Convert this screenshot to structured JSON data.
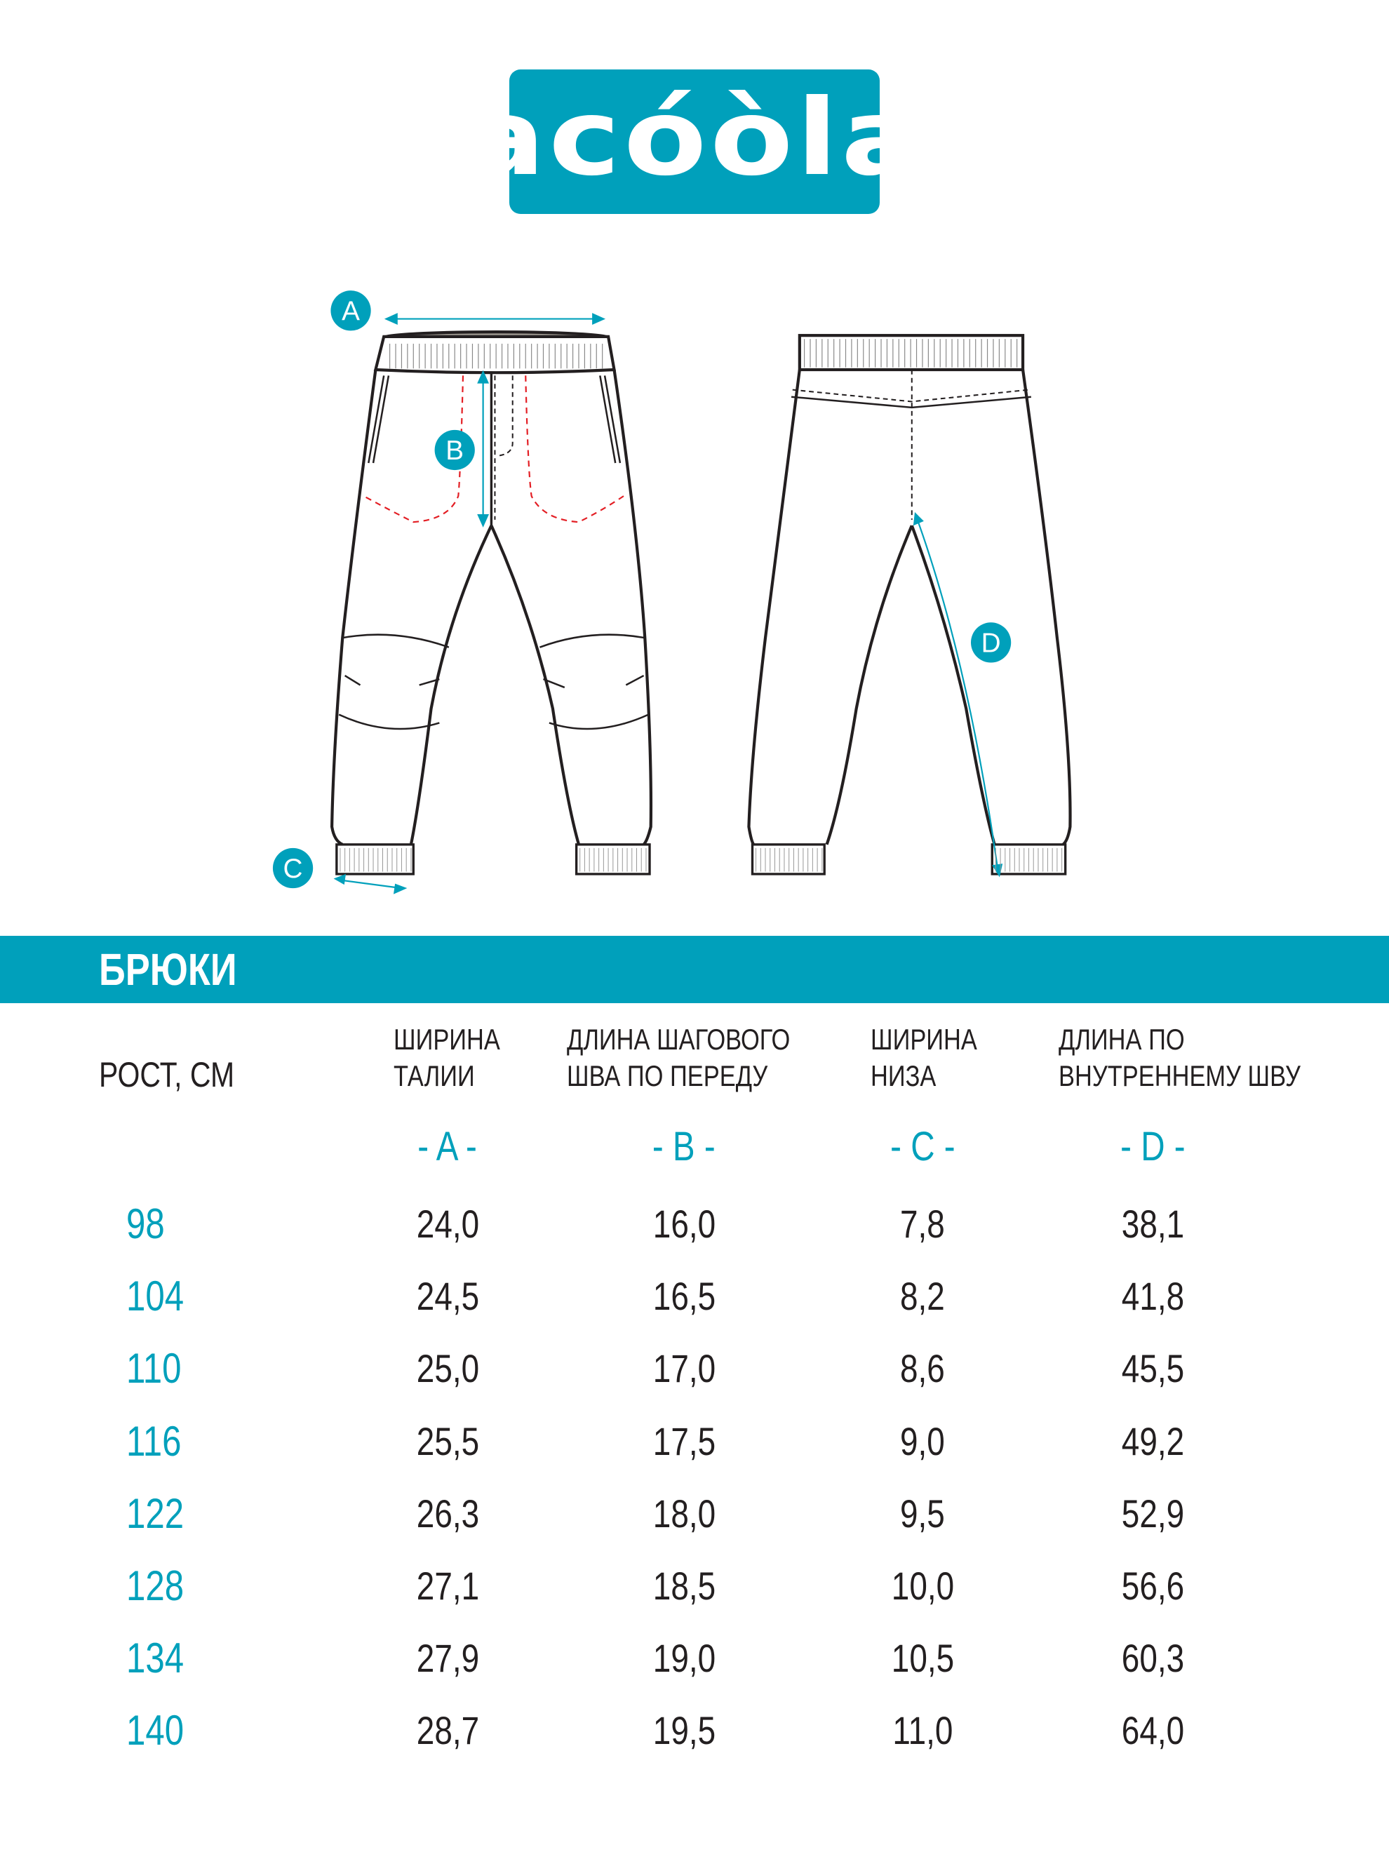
{
  "brand": {
    "logo_text": "acóòla",
    "color": "#00a0bb"
  },
  "diagram": {
    "markers": [
      "A",
      "B",
      "C",
      "D"
    ],
    "accent": "#00a0bb",
    "pocket_stitch_color": "#e31e24"
  },
  "section_title": "БРЮКИ",
  "table": {
    "height_header": "РОСТ, СМ",
    "columns": [
      {
        "line1": "ШИРИНА",
        "line2": "ТАЛИИ",
        "letter": "- A -"
      },
      {
        "line1": "ДЛИНА ШАГОВОГО",
        "line2": "ШВА ПО ПЕРЕДУ",
        "letter": "- B -"
      },
      {
        "line1": "ШИРИНА",
        "line2": "НИЗА",
        "letter": "- C -"
      },
      {
        "line1": "ДЛИНА ПО",
        "line2": "ВНУТРЕННЕМУ ШВУ",
        "letter": "- D -"
      }
    ],
    "rows": [
      {
        "size": "98",
        "values": [
          "24,0",
          "16,0",
          "7,8",
          "38,1"
        ]
      },
      {
        "size": "104",
        "values": [
          "24,5",
          "16,5",
          "8,2",
          "41,8"
        ]
      },
      {
        "size": "110",
        "values": [
          "25,0",
          "17,0",
          "8,6",
          "45,5"
        ]
      },
      {
        "size": "116",
        "values": [
          "25,5",
          "17,5",
          "9,0",
          "49,2"
        ]
      },
      {
        "size": "122",
        "values": [
          "26,3",
          "18,0",
          "9,5",
          "52,9"
        ]
      },
      {
        "size": "128",
        "values": [
          "27,1",
          "18,5",
          "10,0",
          "56,6"
        ]
      },
      {
        "size": "134",
        "values": [
          "27,9",
          "19,0",
          "10,5",
          "60,3"
        ]
      },
      {
        "size": "140",
        "values": [
          "28,7",
          "19,5",
          "11,0",
          "64,0"
        ]
      }
    ]
  }
}
